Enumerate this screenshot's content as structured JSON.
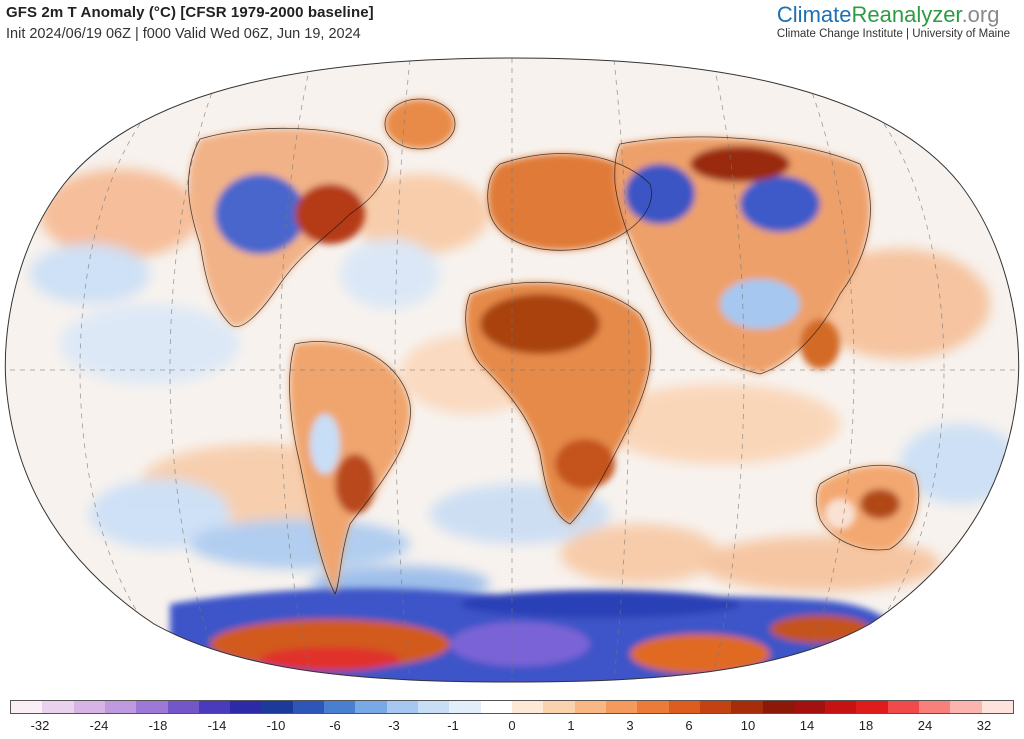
{
  "header": {
    "title": "GFS 2m T Anomaly (°C) [CFSR 1979-2000 baseline]",
    "subtitle": "Init 2024/06/19 06Z | f000 Valid Wed 06Z, Jun 19, 2024"
  },
  "brand": {
    "part1": "Climate",
    "part2": "Reanalyzer",
    "part3": ".org",
    "tagline": "Climate Change Institute | University of Maine",
    "colors": {
      "climate": "#1f6fb2",
      "reanalyzer": "#2e9a43",
      "org": "#8a8a8a"
    }
  },
  "map": {
    "projection": "Winkel Tripel style global",
    "colors": {
      "ocean_neutral": "#f6f3f1",
      "warm": "#f2a76b",
      "hot": "#c4531a",
      "cool": "#a9ccef",
      "cold": "#3a4fc4",
      "extreme_hot": "#e0302a",
      "extreme_cold": "#5a2bb0"
    }
  },
  "legend": {
    "colors": [
      "#fbeff6",
      "#ead2ee",
      "#d7b3e6",
      "#c09ae0",
      "#9d78d6",
      "#7356c8",
      "#4a3bbd",
      "#2c2aa8",
      "#1c3a9a",
      "#2e56b8",
      "#4a7fd0",
      "#78a8e6",
      "#a5c7f0",
      "#c8def7",
      "#e3eefb",
      "#ffffff",
      "#fde9d6",
      "#fbd2ae",
      "#f8b784",
      "#f49a5d",
      "#ec7a39",
      "#dd5c20",
      "#c44112",
      "#a72c0a",
      "#8c1808",
      "#a31010",
      "#c51313",
      "#e01b1b",
      "#f04a4a",
      "#f7807a",
      "#fbb5ae",
      "#fde3dc"
    ],
    "ticks": [
      "-32",
      "-24",
      "-18",
      "-14",
      "-10",
      "-6",
      "-3",
      "-1",
      "0",
      "1",
      "3",
      "6",
      "10",
      "14",
      "18",
      "24",
      "32"
    ]
  }
}
